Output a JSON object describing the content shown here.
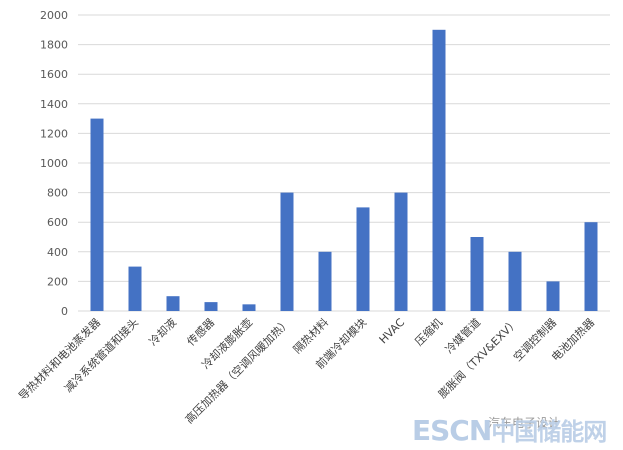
{
  "chart_data": {
    "type": "bar",
    "categories": [
      "导热材料和电池蒸发器",
      "减冷系统管道和接头",
      "冷却液",
      "传感器",
      "冷却液膨胀壶",
      "高压加热器（空调风暖加热）",
      "隔热材料",
      "前端冷却模块",
      "HVAC",
      "压缩机",
      "冷媒管道",
      "膨胀阀（TXV&EXV）",
      "空调控制器",
      "电池加热器"
    ],
    "values": [
      1300,
      300,
      100,
      60,
      45,
      800,
      400,
      700,
      800,
      1900,
      500,
      400,
      200,
      600
    ],
    "ylim": [
      0,
      2000
    ],
    "yticks": [
      0,
      200,
      400,
      600,
      800,
      1000,
      1200,
      1400,
      1600,
      1800,
      2000
    ],
    "grid": true,
    "color": "#4472c4",
    "title": "",
    "xlabel": "",
    "ylabel": ""
  },
  "watermark": {
    "caption": "汽车电子设计",
    "logo_latin": "ESCN",
    "logo_cjk": "中国储能网"
  }
}
